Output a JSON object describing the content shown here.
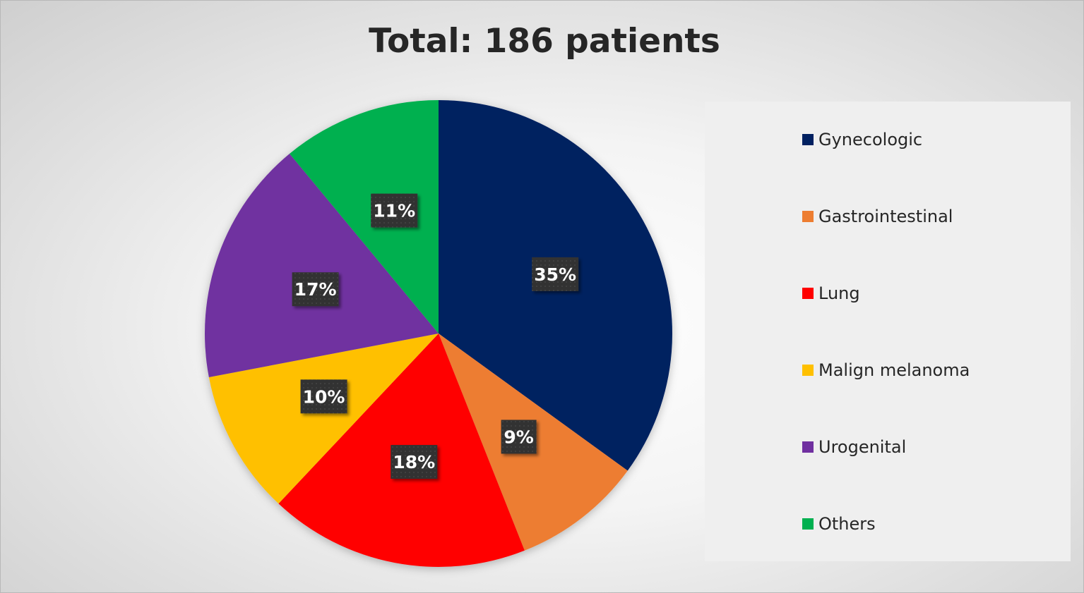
{
  "chart_data": {
    "type": "pie",
    "title": "Total: 186 patients",
    "categories": [
      "Gynecologic",
      "Gastrointestinal",
      "Lung",
      "Malign melanoma",
      "Urogenital",
      "Others"
    ],
    "values": [
      35,
      9,
      18,
      10,
      17,
      11
    ],
    "data_labels": [
      "35%",
      "9%",
      "18%",
      "10%",
      "17%",
      "11%"
    ],
    "colors": [
      "#002060",
      "#ED7D31",
      "#FF0000",
      "#FFC000",
      "#7030A0",
      "#00B050"
    ],
    "legend_position": "right",
    "start_angle": "12 o'clock",
    "direction": "clockwise"
  }
}
